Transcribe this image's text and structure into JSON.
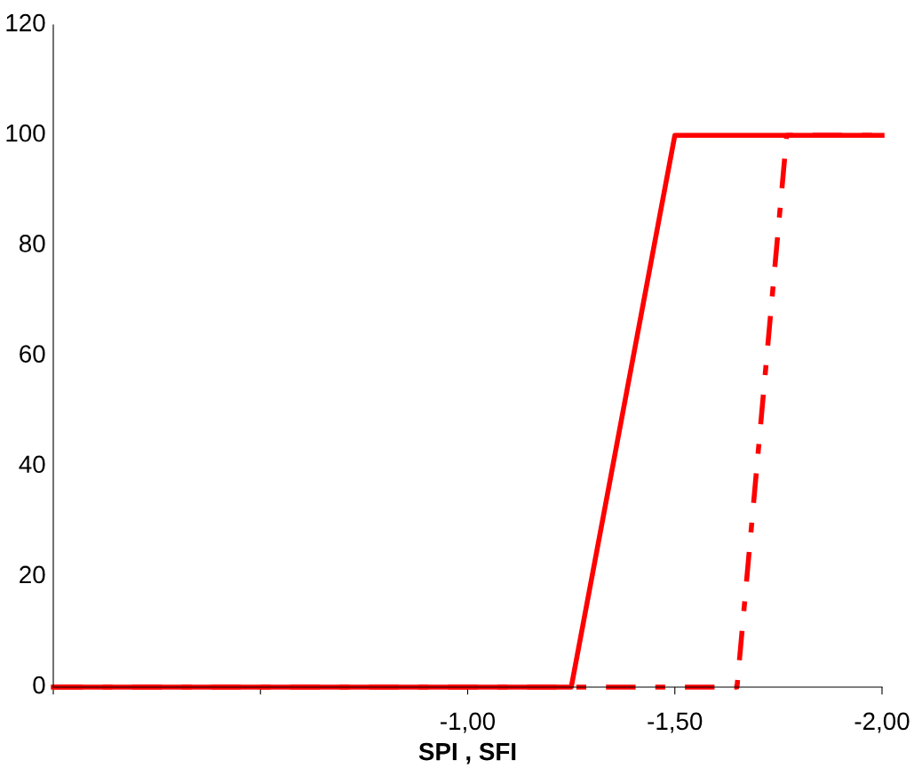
{
  "chart_data": {
    "type": "line",
    "xlabel": "SPI , SFI",
    "series": [
      {
        "color": "#ff0000",
        "x": [
          0,
          -1.25,
          -1.5,
          -2.0
        ],
        "values": [
          0,
          0,
          100,
          100
        ],
        "line_style": "solid"
      },
      {
        "color": "#ff0000",
        "x": [
          0,
          -1.65,
          -1.77,
          -2.0
        ],
        "values": [
          0,
          0,
          100,
          100
        ],
        "line_style": "dashed"
      }
    ],
    "xlim": [
      0,
      -2.0
    ],
    "xticks": [
      {
        "value": 0,
        "label": null
      },
      {
        "value": -0.5,
        "label": null
      },
      {
        "value": -1.0,
        "label": "-1,00"
      },
      {
        "value": -1.5,
        "label": "-1,50"
      },
      {
        "value": -2.0,
        "label": "-2,00"
      }
    ],
    "ylim": [
      0,
      120
    ],
    "yticks": [
      0,
      20,
      40,
      60,
      80,
      100,
      120
    ],
    "grid": false,
    "marker": "none"
  }
}
